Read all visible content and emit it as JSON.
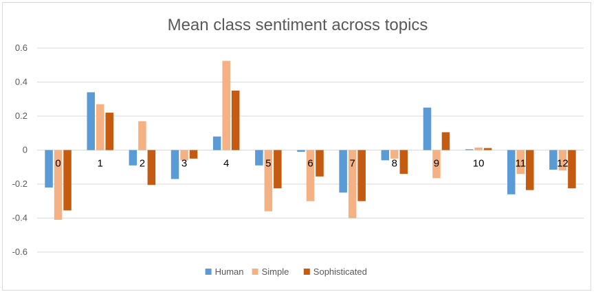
{
  "chart_data": {
    "type": "bar",
    "title": "Mean class sentiment across topics",
    "xlabel": "",
    "ylabel": "",
    "categories": [
      "0",
      "1",
      "2",
      "3",
      "4",
      "5",
      "6",
      "7",
      "8",
      "9",
      "10",
      "11",
      "12"
    ],
    "series": [
      {
        "name": "Human",
        "color": "#5b9bd5",
        "values": [
          -0.22,
          0.34,
          -0.09,
          -0.17,
          0.08,
          -0.09,
          -0.01,
          -0.25,
          -0.06,
          0.25,
          0.005,
          -0.26,
          -0.115
        ]
      },
      {
        "name": "Simple",
        "color": "#f4b183",
        "values": [
          -0.41,
          0.27,
          0.17,
          -0.06,
          0.525,
          -0.36,
          -0.3,
          -0.4,
          -0.05,
          -0.165,
          0.015,
          -0.14,
          -0.12
        ]
      },
      {
        "name": "Sophisticated",
        "color": "#c55a11",
        "values": [
          -0.355,
          0.22,
          -0.205,
          -0.05,
          0.35,
          -0.225,
          -0.155,
          -0.3,
          -0.14,
          0.105,
          0.012,
          -0.235,
          -0.225
        ]
      }
    ],
    "ylim": [
      -0.6,
      0.6
    ],
    "yticks": [
      "0.6",
      "0.4",
      "0.2",
      "0",
      "-0.2",
      "-0.4",
      "-0.6"
    ],
    "ytick_values": [
      0.6,
      0.4,
      0.2,
      0,
      -0.2,
      -0.4,
      -0.6
    ],
    "grid": true,
    "legend_position": "bottom"
  }
}
